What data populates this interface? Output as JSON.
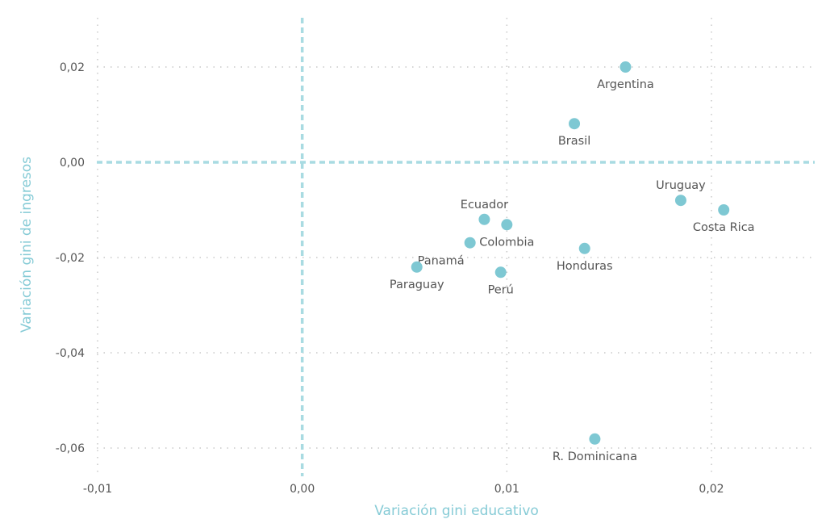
{
  "chart_data": {
    "type": "scatter",
    "title": "",
    "xlabel": "Variación gini educativo",
    "ylabel": "Variación gini de ingresos",
    "xlim": [
      -0.011,
      0.0251
    ],
    "ylim": [
      -0.0665,
      0.0307
    ],
    "xticks": [
      -0.01,
      0.0,
      0.01,
      0.02
    ],
    "xtick_labels": [
      "-0,01",
      "0,00",
      "0,01",
      "0,02"
    ],
    "yticks": [
      0.02,
      0.0,
      -0.02,
      -0.04,
      -0.06
    ],
    "ytick_labels": [
      "0,02",
      "0,00",
      "-0,02",
      "-0,04",
      "-0,06"
    ],
    "grid": true,
    "reference_lines": {
      "x": 0.0,
      "y": 0.0
    },
    "point_color": "#7ec8d3",
    "points": [
      {
        "label": "Argentina",
        "x": 0.0158,
        "y": 0.02,
        "label_position": "below"
      },
      {
        "label": "Brasil",
        "x": 0.0133,
        "y": 0.0081,
        "label_position": "below"
      },
      {
        "label": "Uruguay",
        "x": 0.0185,
        "y": -0.008,
        "label_position": "above"
      },
      {
        "label": "Costa Rica",
        "x": 0.0206,
        "y": -0.01,
        "label_position": "below"
      },
      {
        "label": "Ecuador",
        "x": 0.0089,
        "y": -0.012,
        "label_position": "above"
      },
      {
        "label": "Colombia",
        "x": 0.01,
        "y": -0.0131,
        "label_position": "below"
      },
      {
        "label": "Panamá",
        "x": 0.0082,
        "y": -0.0169,
        "label_position": "below-left"
      },
      {
        "label": "Honduras",
        "x": 0.0138,
        "y": -0.0181,
        "label_position": "below"
      },
      {
        "label": "Paraguay",
        "x": 0.0056,
        "y": -0.022,
        "label_position": "below"
      },
      {
        "label": "Perú",
        "x": 0.0097,
        "y": -0.0231,
        "label_position": "below"
      },
      {
        "label": "R. Dominicana",
        "x": 0.0143,
        "y": -0.0581,
        "label_position": "below"
      }
    ]
  }
}
